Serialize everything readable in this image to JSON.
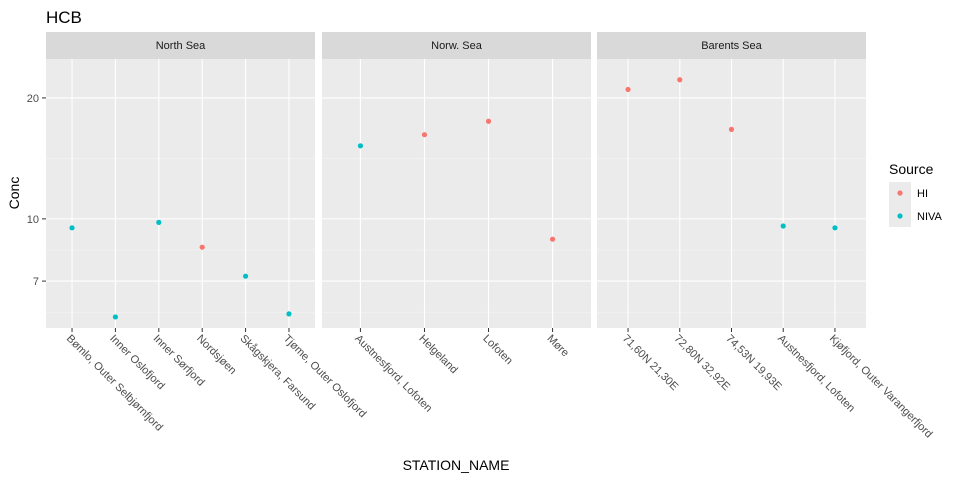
{
  "chart_data": {
    "type": "scatter",
    "title": "HCB",
    "xlabel": "STATION_NAME",
    "ylabel": "Conc",
    "y_scale": "log",
    "ylim": [
      5.35,
      25
    ],
    "yticks": [
      {
        "value": 7,
        "label": "7"
      },
      {
        "value": 10,
        "label": "10"
      },
      {
        "value": 20,
        "label": "20"
      }
    ],
    "grid": true,
    "legend": {
      "title": "Source",
      "placement": "right",
      "entries": [
        {
          "name": "HI",
          "color": "#F8766D"
        },
        {
          "name": "NIVA",
          "color": "#00BFC4"
        }
      ]
    },
    "facets": [
      {
        "name": "North Sea",
        "categories": [
          "Bømlo, Outer Selbjørnfjord",
          "Inner Oslofjord",
          "Inner Sørfjord",
          "Nordsjøen",
          "Skågskjera, Farsund",
          "Tjøme, Outer Oslofjord"
        ],
        "points": [
          {
            "x": "Bømlo, Outer Selbjørnfjord",
            "y": 9.5,
            "source": "NIVA"
          },
          {
            "x": "Inner Oslofjord",
            "y": 5.7,
            "source": "NIVA"
          },
          {
            "x": "Inner Sørfjord",
            "y": 9.8,
            "source": "NIVA"
          },
          {
            "x": "Nordsjøen",
            "y": 8.5,
            "source": "HI"
          },
          {
            "x": "Skågskjera, Farsund",
            "y": 7.2,
            "source": "NIVA"
          },
          {
            "x": "Tjøme, Outer Oslofjord",
            "y": 5.8,
            "source": "NIVA"
          }
        ]
      },
      {
        "name": "Norw. Sea",
        "categories": [
          "Austnesfjord, Lofoten",
          "Helgeland",
          "Lofoten",
          "Møre"
        ],
        "points": [
          {
            "x": "Austnesfjord, Lofoten",
            "y": 15.2,
            "source": "NIVA"
          },
          {
            "x": "Helgeland",
            "y": 16.2,
            "source": "HI"
          },
          {
            "x": "Lofoten",
            "y": 17.5,
            "source": "HI"
          },
          {
            "x": "Møre",
            "y": 8.9,
            "source": "HI"
          }
        ]
      },
      {
        "name": "Barents Sea",
        "categories": [
          "71,60N 21,30E",
          "72,80N 32,92E",
          "74,53N 19,93E",
          "Austnesfjord, Lofoten",
          "Kjøfjord, Outer Varangerfjord"
        ],
        "points": [
          {
            "x": "71,60N 21,30E",
            "y": 21.0,
            "source": "HI"
          },
          {
            "x": "72,80N 32,92E",
            "y": 22.2,
            "source": "HI"
          },
          {
            "x": "74,53N 19,93E",
            "y": 16.7,
            "source": "HI"
          },
          {
            "x": "Austnesfjord, Lofoten",
            "y": 9.6,
            "source": "NIVA"
          },
          {
            "x": "Kjøfjord, Outer Varangerfjord",
            "y": 9.5,
            "source": "NIVA"
          }
        ]
      }
    ]
  }
}
